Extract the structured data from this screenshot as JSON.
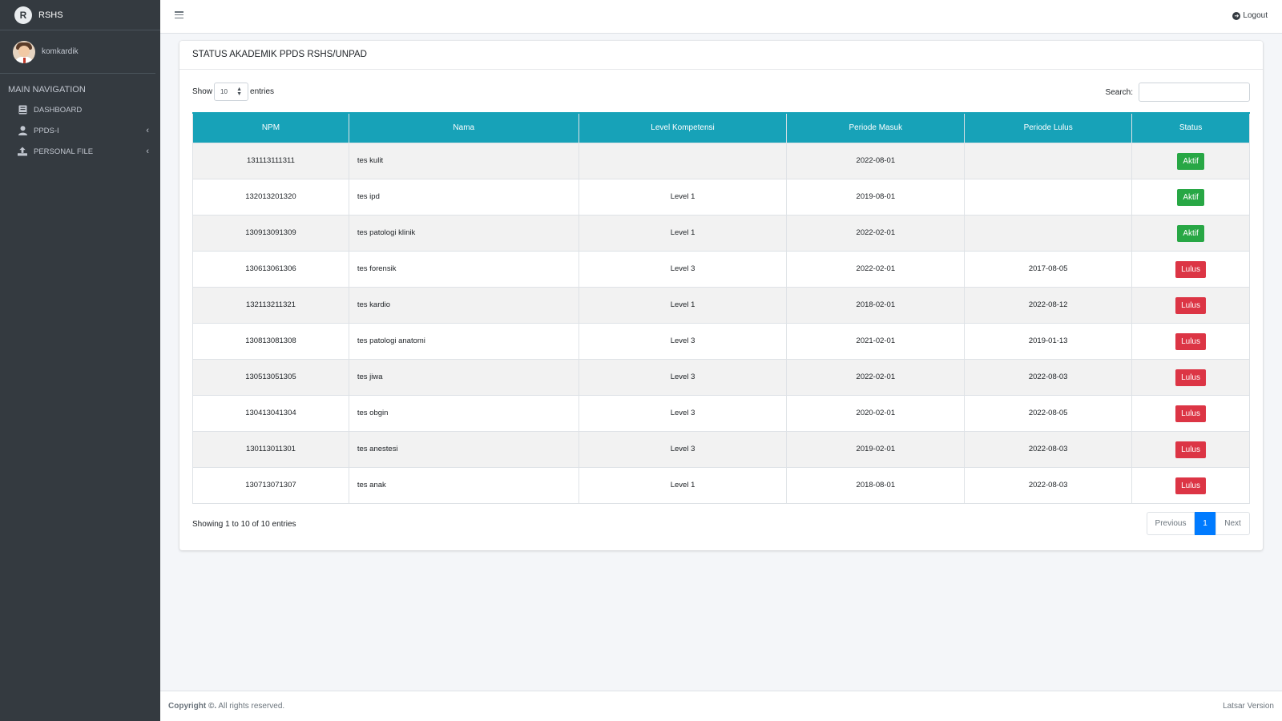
{
  "brand": {
    "name": "RSHS"
  },
  "user": {
    "name": "komkardik"
  },
  "nav": {
    "header": "MAIN NAVIGATION",
    "items": [
      {
        "label": "DASHBOARD",
        "icon": "book-icon"
      },
      {
        "label": "PPDS-I",
        "icon": "user-icon",
        "caret": "‹"
      },
      {
        "label": "PERSONAL FILE",
        "icon": "upload-icon",
        "caret": "‹"
      }
    ]
  },
  "topbar": {
    "logout_label": "Logout"
  },
  "card": {
    "title": "STATUS AKADEMIK PPDS RSHS/UNPAD"
  },
  "table_controls": {
    "show_label": "Show",
    "entries_value": "10",
    "entries_label": "entries",
    "search_label": "Search:"
  },
  "table": {
    "headers": [
      "NPM",
      "Nama",
      "Level Kompetensi",
      "Periode Masuk",
      "Periode Lulus",
      "Status"
    ],
    "rows": [
      {
        "npm": "131113111311",
        "nama": "tes kulit",
        "level": "",
        "masuk": "2022-08-01",
        "lulus": "",
        "status": "Aktif"
      },
      {
        "npm": "132013201320",
        "nama": "tes ipd",
        "level": "Level 1",
        "masuk": "2019-08-01",
        "lulus": "",
        "status": "Aktif"
      },
      {
        "npm": "130913091309",
        "nama": "tes patologi klinik",
        "level": "Level 1",
        "masuk": "2022-02-01",
        "lulus": "",
        "status": "Aktif"
      },
      {
        "npm": "130613061306",
        "nama": "tes forensik",
        "level": "Level 3",
        "masuk": "2022-02-01",
        "lulus": "2017-08-05",
        "status": "Lulus"
      },
      {
        "npm": "132113211321",
        "nama": "tes kardio",
        "level": "Level 1",
        "masuk": "2018-02-01",
        "lulus": "2022-08-12",
        "status": "Lulus"
      },
      {
        "npm": "130813081308",
        "nama": "tes patologi anatomi",
        "level": "Level 3",
        "masuk": "2021-02-01",
        "lulus": "2019-01-13",
        "status": "Lulus"
      },
      {
        "npm": "130513051305",
        "nama": "tes jiwa",
        "level": "Level 3",
        "masuk": "2022-02-01",
        "lulus": "2022-08-03",
        "status": "Lulus"
      },
      {
        "npm": "130413041304",
        "nama": "tes obgin",
        "level": "Level 3",
        "masuk": "2020-02-01",
        "lulus": "2022-08-05",
        "status": "Lulus"
      },
      {
        "npm": "130113011301",
        "nama": "tes anestesi",
        "level": "Level 3",
        "masuk": "2019-02-01",
        "lulus": "2022-08-03",
        "status": "Lulus"
      },
      {
        "npm": "130713071307",
        "nama": "tes anak",
        "level": "Level 1",
        "masuk": "2018-08-01",
        "lulus": "2022-08-03",
        "status": "Lulus"
      }
    ]
  },
  "table_info": "Showing 1 to 10 of 10 entries",
  "pagination": {
    "previous": "Previous",
    "current": "1",
    "next": "Next"
  },
  "footer": {
    "left_bold": "Copyright ©.",
    "left": " All rights reserved.",
    "right": "Latsar Version"
  },
  "colors": {
    "sidebar": "#343a40",
    "table_header": "#17a2b8",
    "aktif": "#28a745",
    "lulus": "#dc3545",
    "page_active": "#007bff"
  }
}
